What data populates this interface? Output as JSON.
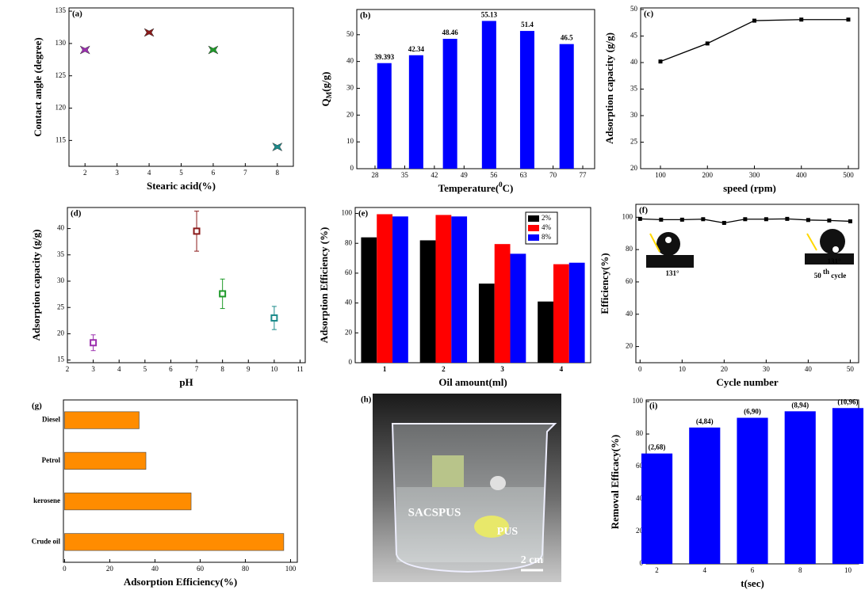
{
  "chart_data": [
    {
      "type": "scatter",
      "label": "(a)",
      "xlabel": "Stearic acid(%)",
      "ylabel": "Contact angle (degree)",
      "x": [
        2,
        4,
        6,
        8
      ],
      "values": [
        129,
        131.7,
        129,
        114
      ],
      "colors": [
        "#9b2fae",
        "#8b1a1a",
        "#1f9a2a",
        "#1b8a8a"
      ],
      "xlim": [
        1.5,
        8.5
      ],
      "xticks": [
        2,
        3,
        4,
        5,
        6,
        7,
        8
      ],
      "ylim": [
        111,
        135.5
      ],
      "yticks": [
        115,
        120,
        125,
        130,
        135
      ]
    },
    {
      "type": "bar",
      "label": "(b)",
      "xlabel": {
        "text": "Temperature(",
        "sup": "0",
        "unit": "C)"
      },
      "ylabel": {
        "text": "Q",
        "sub": "M",
        "unit": "(g/g)"
      },
      "x": [
        30.2,
        37.7,
        45.7,
        54.9,
        63.9,
        73.2
      ],
      "values": [
        39.393,
        42.34,
        48.46,
        55.13,
        51.4,
        46.5
      ],
      "color": "#0000ff",
      "xlim": [
        23.7,
        79.8
      ],
      "xticks": [
        28,
        35,
        42,
        49,
        56,
        63,
        70,
        77
      ],
      "ylim": [
        0,
        59.4
      ],
      "yticks": [
        0,
        10,
        20,
        30,
        40,
        50
      ]
    },
    {
      "type": "line",
      "label": "(c)",
      "xlabel": "speed (rpm)",
      "ylabel": "Adsorption capacity (g/g)",
      "x": [
        100,
        200,
        300,
        400,
        500
      ],
      "values": [
        40.2,
        43.6,
        47.9,
        48.1,
        48.1
      ],
      "color": "#000000",
      "markers": true,
      "xlim": [
        57.8,
        522
      ],
      "xticks": [
        100,
        200,
        300,
        400,
        500
      ],
      "ylim": [
        20,
        50.3
      ],
      "yticks": [
        20,
        25,
        30,
        35,
        40,
        45,
        50
      ]
    },
    {
      "type": "errorbar",
      "label": "(d)",
      "xlabel": "pH",
      "ylabel": "Adsorption capacity (g/g)",
      "x": [
        3,
        7,
        8,
        10
      ],
      "values": [
        18.3,
        39.5,
        27.6,
        23
      ],
      "errors": [
        1.5,
        3.8,
        2.8,
        2.2
      ],
      "colors": [
        "#9b2fae",
        "#8b1a1a",
        "#1f9a2a",
        "#1b8a8a"
      ],
      "xlim": [
        2,
        11.2
      ],
      "xticks": [
        2,
        3,
        4,
        5,
        6,
        7,
        8,
        9,
        10,
        11
      ],
      "ylim": [
        14.5,
        44
      ],
      "yticks": [
        15,
        20,
        25,
        30,
        35,
        40
      ]
    },
    {
      "type": "groupedbar",
      "label": "(e)",
      "xlabel": "Oil amount(ml)",
      "ylabel": "Adsorption Efficiency (%)",
      "categories": [
        "1",
        "2",
        "3",
        "4"
      ],
      "series": [
        {
          "name": "2%",
          "color": "#000000",
          "values": [
            84,
            82,
            53,
            41
          ]
        },
        {
          "name": "4%",
          "color": "#ff0000",
          "values": [
            99.5,
            99,
            79.5,
            66
          ]
        },
        {
          "name": "8%",
          "color": "#0000ff",
          "values": [
            98,
            98,
            73,
            67
          ]
        }
      ],
      "ylim": [
        0,
        104
      ],
      "yticks": [
        0,
        20,
        40,
        60,
        80,
        100
      ],
      "legend": "upper right"
    },
    {
      "type": "line",
      "label": "(f)",
      "xlabel": "Cycle number",
      "ylabel": "Efficiency(%)",
      "x": [
        0,
        5,
        10,
        15,
        20,
        25,
        30,
        35,
        40,
        45,
        50
      ],
      "values": [
        99,
        98.5,
        98.5,
        98.8,
        96.5,
        98.8,
        98.8,
        99,
        98.3,
        98,
        97.5
      ],
      "color": "#000000",
      "markers": true,
      "xlim": [
        -1,
        52
      ],
      "xticks": [
        0,
        10,
        20,
        30,
        40,
        50
      ],
      "ylim": [
        10,
        108
      ],
      "yticks": [
        20,
        40,
        60,
        80,
        100
      ],
      "annotations": [
        "131°",
        "131°",
        {
          "text": "50 ",
          "sup": "th",
          "unit": " cycle"
        }
      ]
    },
    {
      "type": "barh",
      "label": "(g)",
      "xlabel": "Adsorption Efficiency(%)",
      "categories": [
        "Diesel",
        "Petrol",
        "kerosene",
        "Crude oil"
      ],
      "values": [
        33,
        36,
        56,
        97
      ],
      "color": "#ff8c00",
      "xlim": [
        -0.5,
        103
      ],
      "xticks": [
        0,
        20,
        40,
        60,
        80,
        100
      ]
    },
    {
      "type": "bar",
      "label": "(i)",
      "xlabel": "t(sec)",
      "ylabel": "Removal Efficacy(%)",
      "x": [
        2,
        4,
        6,
        8,
        10
      ],
      "values": [
        68,
        84,
        90,
        94,
        96
      ],
      "value_labels": [
        "(2,68)",
        "(4,84)",
        "(6,90)",
        "(8,94)",
        "(10,96)"
      ],
      "value_label_color": "#8b1a1a",
      "color": "#0000ff",
      "xlim": [
        1.55,
        10.45
      ],
      "xticks": [
        2,
        4,
        6,
        8,
        10
      ],
      "ylim": [
        0,
        101
      ],
      "yticks": [
        0,
        20,
        40,
        60,
        80,
        100
      ]
    }
  ],
  "photo": {
    "label": "(h)",
    "sample_1": "SACSPUS",
    "sample_2": "PUS",
    "scale": "2 cm"
  }
}
